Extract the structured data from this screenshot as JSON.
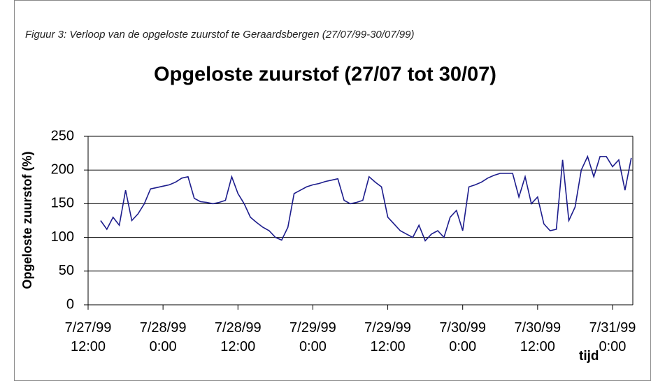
{
  "caption": "Figuur 3: Verloop van de opgeloste zuurstof te Geraardsbergen (27/07/99-30/07/99)",
  "chart_data": {
    "type": "line",
    "title": "Opgeloste zuurstof (27/07 tot 30/07)",
    "y_label": "Opgeloste zuurstof (%)",
    "x_label": "tijd",
    "x": [
      "7/27/99 14:00",
      "7/27/99 15:00",
      "7/27/99 16:00",
      "7/27/99 17:00",
      "7/27/99 18:00",
      "7/27/99 19:00",
      "7/27/99 20:00",
      "7/27/99 21:00",
      "7/27/99 22:00",
      "7/27/99 23:00",
      "7/28/99 0:00",
      "7/28/99 1:00",
      "7/28/99 2:00",
      "7/28/99 3:00",
      "7/28/99 4:00",
      "7/28/99 5:00",
      "7/28/99 6:00",
      "7/28/99 7:00",
      "7/28/99 8:00",
      "7/28/99 9:00",
      "7/28/99 10:00",
      "7/28/99 11:00",
      "7/28/99 12:00",
      "7/28/99 13:00",
      "7/28/99 14:00",
      "7/28/99 15:00",
      "7/28/99 16:00",
      "7/28/99 17:00",
      "7/28/99 18:00",
      "7/28/99 19:00",
      "7/28/99 20:00",
      "7/28/99 21:00",
      "7/28/99 22:00",
      "7/28/99 23:00",
      "7/29/99 0:00",
      "7/29/99 1:00",
      "7/29/99 2:00",
      "7/29/99 3:00",
      "7/29/99 4:00",
      "7/29/99 5:00",
      "7/29/99 6:00",
      "7/29/99 7:00",
      "7/29/99 8:00",
      "7/29/99 9:00",
      "7/29/99 10:00",
      "7/29/99 11:00",
      "7/29/99 12:00",
      "7/29/99 13:00",
      "7/29/99 14:00",
      "7/29/99 15:00",
      "7/29/99 16:00",
      "7/29/99 17:00",
      "7/29/99 18:00",
      "7/29/99 19:00",
      "7/29/99 20:00",
      "7/29/99 21:00",
      "7/29/99 22:00",
      "7/29/99 23:00",
      "7/30/99 0:00",
      "7/30/99 1:00",
      "7/30/99 2:00",
      "7/30/99 3:00",
      "7/30/99 4:00",
      "7/30/99 5:00",
      "7/30/99 6:00",
      "7/30/99 7:00",
      "7/30/99 8:00",
      "7/30/99 9:00",
      "7/30/99 10:00",
      "7/30/99 11:00",
      "7/30/99 12:00",
      "7/30/99 13:00",
      "7/30/99 14:00",
      "7/30/99 15:00",
      "7/30/99 16:00",
      "7/30/99 17:00",
      "7/30/99 18:00",
      "7/30/99 19:00",
      "7/30/99 20:00",
      "7/30/99 21:00",
      "7/30/99 22:00",
      "7/30/99 23:00",
      "7/31/99 0:00",
      "7/31/99 1:00",
      "7/31/99 2:00",
      "7/31/99 3:00"
    ],
    "series": [
      {
        "name": "Opgeloste zuurstof",
        "color": "#1c1c8c",
        "values": [
          125,
          112,
          130,
          118,
          170,
          125,
          135,
          150,
          172,
          174,
          176,
          178,
          182,
          188,
          190,
          158,
          153,
          152,
          150,
          152,
          155,
          190,
          165,
          150,
          130,
          122,
          115,
          110,
          100,
          96,
          115,
          165,
          170,
          175,
          178,
          180,
          183,
          185,
          187,
          155,
          150,
          152,
          155,
          190,
          182,
          175,
          130,
          120,
          110,
          105,
          100,
          118,
          95,
          105,
          110,
          100,
          130,
          140,
          110,
          175,
          178,
          182,
          188,
          192,
          195,
          195,
          195,
          160,
          190,
          150,
          160,
          120,
          110,
          112,
          215,
          125,
          145,
          200,
          220,
          190,
          220,
          220,
          205,
          215,
          170,
          218
        ]
      }
    ],
    "xlim": [
      "7/27/99 12:00",
      "7/31/99 3:15"
    ],
    "xticks": [
      "7/27/99 12:00",
      "7/28/99 0:00",
      "7/28/99 12:00",
      "7/29/99 0:00",
      "7/29/99 12:00",
      "7/30/99 0:00",
      "7/30/99 12:00",
      "7/31/99 0:00"
    ],
    "ylim": [
      0,
      250
    ],
    "yticks": [
      0,
      50,
      100,
      150,
      200,
      250
    ],
    "grid": true
  }
}
